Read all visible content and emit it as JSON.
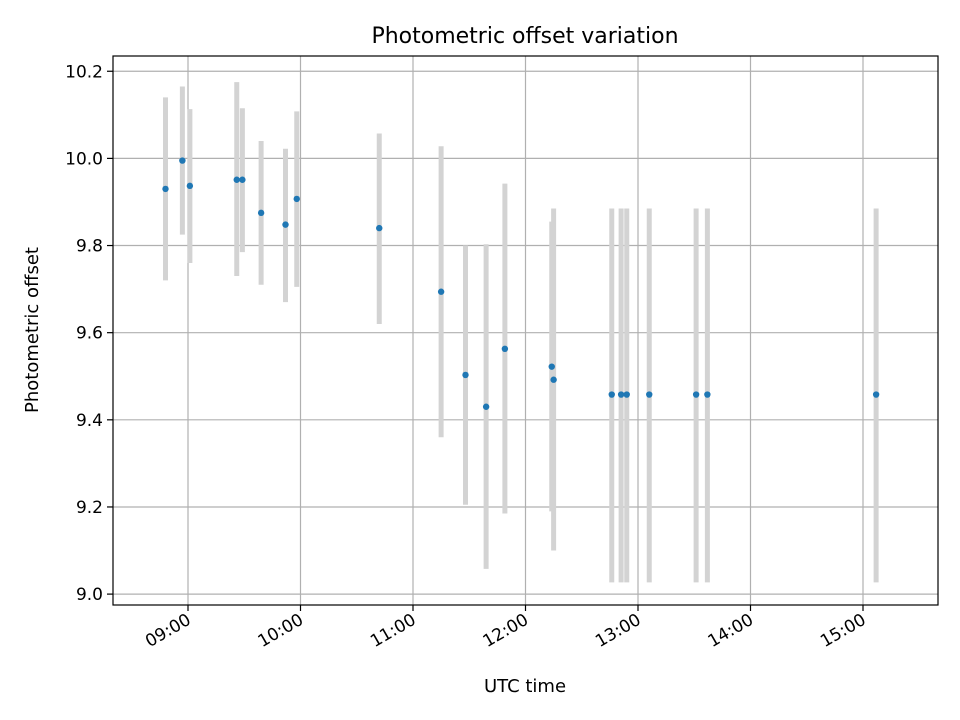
{
  "chart_data": {
    "type": "scatter",
    "title": "Photometric offset variation",
    "xlabel": "UTC time",
    "ylabel": "Photometric offset",
    "x_axis_type": "time",
    "xlim": [
      "08:20",
      "15:40"
    ],
    "ylim": [
      8.975,
      10.235
    ],
    "x_ticks": [
      "09:00",
      "10:00",
      "11:00",
      "12:00",
      "13:00",
      "14:00",
      "15:00"
    ],
    "y_ticks": [
      "9.0",
      "9.2",
      "9.4",
      "9.6",
      "9.8",
      "10.0",
      "10.2"
    ],
    "grid": true,
    "point_color": "#1f77b4",
    "errorbar_color": "#d3d3d3",
    "points": [
      {
        "t": "08:48",
        "y": 9.93,
        "lo": 9.72,
        "hi": 10.14
      },
      {
        "t": "08:57",
        "y": 9.995,
        "lo": 9.825,
        "hi": 10.165
      },
      {
        "t": "09:01",
        "y": 9.937,
        "lo": 9.76,
        "hi": 10.113
      },
      {
        "t": "09:26",
        "y": 9.951,
        "lo": 9.73,
        "hi": 10.175
      },
      {
        "t": "09:29",
        "y": 9.951,
        "lo": 9.785,
        "hi": 10.115
      },
      {
        "t": "09:39",
        "y": 9.875,
        "lo": 9.71,
        "hi": 10.04
      },
      {
        "t": "09:52",
        "y": 9.848,
        "lo": 9.67,
        "hi": 10.022
      },
      {
        "t": "09:58",
        "y": 9.907,
        "lo": 9.705,
        "hi": 10.108
      },
      {
        "t": "10:42",
        "y": 9.84,
        "lo": 9.62,
        "hi": 10.057
      },
      {
        "t": "11:15",
        "y": 9.694,
        "lo": 9.36,
        "hi": 10.028
      },
      {
        "t": "11:28",
        "y": 9.503,
        "lo": 9.205,
        "hi": 9.8
      },
      {
        "t": "11:39",
        "y": 9.43,
        "lo": 9.058,
        "hi": 9.803
      },
      {
        "t": "11:49",
        "y": 9.563,
        "lo": 9.185,
        "hi": 9.942
      },
      {
        "t": "12:14",
        "y": 9.522,
        "lo": 9.19,
        "hi": 9.855
      },
      {
        "t": "12:15",
        "y": 9.492,
        "lo": 9.1,
        "hi": 9.885
      },
      {
        "t": "12:46",
        "y": 9.458,
        "lo": 9.027,
        "hi": 9.885
      },
      {
        "t": "12:51",
        "y": 9.458,
        "lo": 9.027,
        "hi": 9.885
      },
      {
        "t": "12:54",
        "y": 9.458,
        "lo": 9.027,
        "hi": 9.885
      },
      {
        "t": "13:06",
        "y": 9.458,
        "lo": 9.027,
        "hi": 9.885
      },
      {
        "t": "13:31",
        "y": 9.458,
        "lo": 9.027,
        "hi": 9.885
      },
      {
        "t": "13:37",
        "y": 9.458,
        "lo": 9.027,
        "hi": 9.885
      },
      {
        "t": "15:07",
        "y": 9.458,
        "lo": 9.027,
        "hi": 9.885
      }
    ]
  }
}
